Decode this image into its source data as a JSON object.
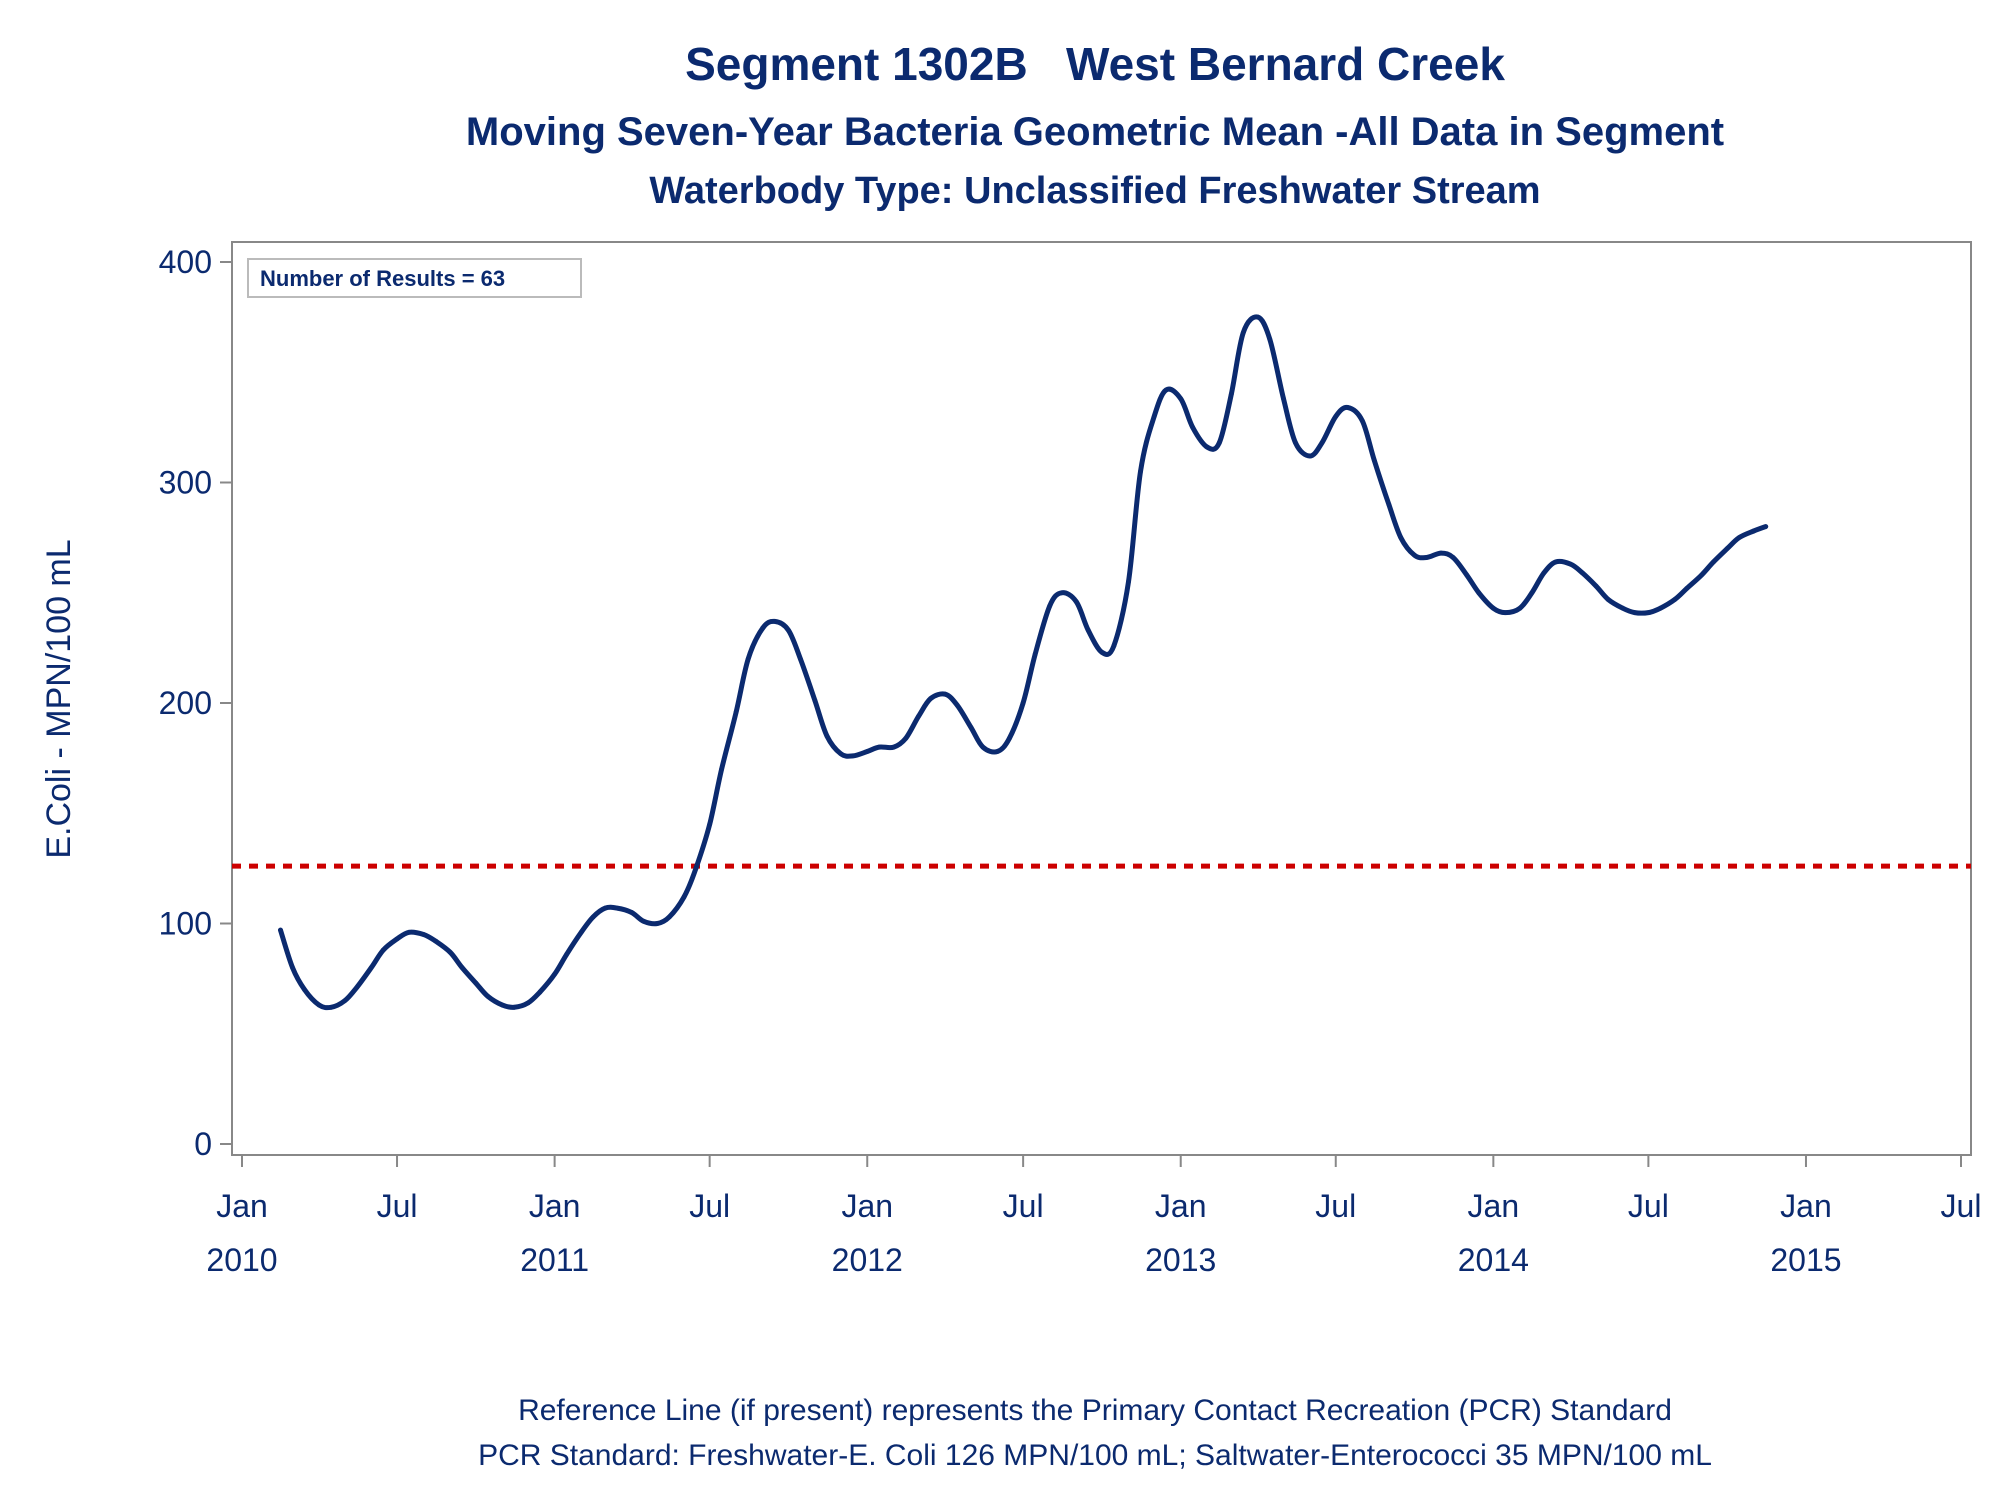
{
  "chart_data": {
    "type": "line",
    "title": "Segment 1302B   West Bernard Creek",
    "subtitle": "Moving Seven-Year Bacteria Geometric Mean -All Data in Segment",
    "subtitle2": "Waterbody Type: Unclassified Freshwater Stream",
    "ylabel": "E.Coli - MPN/100 mL",
    "ylim": [
      0,
      400
    ],
    "yticks": [
      0,
      100,
      200,
      300,
      400
    ],
    "xlim": [
      "2010-01-01",
      "2015-07-01"
    ],
    "xticks": [
      {
        "date": "2010-01-01",
        "month": "Jan",
        "year": "2010"
      },
      {
        "date": "2010-07-01",
        "month": "Jul",
        "year": ""
      },
      {
        "date": "2011-01-01",
        "month": "Jan",
        "year": "2011"
      },
      {
        "date": "2011-07-01",
        "month": "Jul",
        "year": ""
      },
      {
        "date": "2012-01-01",
        "month": "Jan",
        "year": "2012"
      },
      {
        "date": "2012-07-01",
        "month": "Jul",
        "year": ""
      },
      {
        "date": "2013-01-01",
        "month": "Jan",
        "year": "2013"
      },
      {
        "date": "2013-07-01",
        "month": "Jul",
        "year": ""
      },
      {
        "date": "2014-01-01",
        "month": "Jan",
        "year": "2014"
      },
      {
        "date": "2014-07-01",
        "month": "Jul",
        "year": ""
      },
      {
        "date": "2015-01-01",
        "month": "Jan",
        "year": "2015"
      },
      {
        "date": "2015-07-01",
        "month": "Jul",
        "year": ""
      }
    ],
    "inset_label": "Number of Results = 63",
    "reference_line": {
      "value": 126,
      "color": "#cc0000",
      "style": "dashed"
    },
    "series": [
      {
        "color": "#0b2a6f",
        "points": [
          [
            "2010-02-15",
            97
          ],
          [
            "2010-03-01",
            80
          ],
          [
            "2010-03-15",
            70
          ],
          [
            "2010-04-01",
            63
          ],
          [
            "2010-04-15",
            62
          ],
          [
            "2010-05-01",
            65
          ],
          [
            "2010-05-15",
            71
          ],
          [
            "2010-06-01",
            80
          ],
          [
            "2010-06-15",
            88
          ],
          [
            "2010-07-01",
            93
          ],
          [
            "2010-07-15",
            96
          ],
          [
            "2010-08-01",
            95
          ],
          [
            "2010-08-15",
            92
          ],
          [
            "2010-09-01",
            87
          ],
          [
            "2010-09-15",
            80
          ],
          [
            "2010-10-01",
            73
          ],
          [
            "2010-10-15",
            67
          ],
          [
            "2010-11-01",
            63
          ],
          [
            "2010-11-15",
            62
          ],
          [
            "2010-12-01",
            64
          ],
          [
            "2010-12-15",
            69
          ],
          [
            "2011-01-01",
            77
          ],
          [
            "2011-01-15",
            86
          ],
          [
            "2011-02-01",
            96
          ],
          [
            "2011-02-15",
            103
          ],
          [
            "2011-03-01",
            107
          ],
          [
            "2011-03-15",
            107
          ],
          [
            "2011-04-01",
            105
          ],
          [
            "2011-04-15",
            101
          ],
          [
            "2011-05-01",
            100
          ],
          [
            "2011-05-15",
            103
          ],
          [
            "2011-06-01",
            112
          ],
          [
            "2011-06-15",
            125
          ],
          [
            "2011-07-01",
            145
          ],
          [
            "2011-07-15",
            170
          ],
          [
            "2011-08-01",
            196
          ],
          [
            "2011-08-15",
            220
          ],
          [
            "2011-09-01",
            234
          ],
          [
            "2011-09-15",
            237
          ],
          [
            "2011-10-01",
            233
          ],
          [
            "2011-10-15",
            220
          ],
          [
            "2011-11-01",
            201
          ],
          [
            "2011-11-15",
            185
          ],
          [
            "2011-12-01",
            177
          ],
          [
            "2011-12-15",
            176
          ],
          [
            "2012-01-01",
            178
          ],
          [
            "2012-01-15",
            180
          ],
          [
            "2012-02-01",
            180
          ],
          [
            "2012-02-15",
            184
          ],
          [
            "2012-03-01",
            194
          ],
          [
            "2012-03-15",
            202
          ],
          [
            "2012-04-01",
            204
          ],
          [
            "2012-04-15",
            199
          ],
          [
            "2012-05-01",
            189
          ],
          [
            "2012-05-15",
            180
          ],
          [
            "2012-06-01",
            178
          ],
          [
            "2012-06-15",
            184
          ],
          [
            "2012-07-01",
            200
          ],
          [
            "2012-07-15",
            222
          ],
          [
            "2012-08-01",
            244
          ],
          [
            "2012-08-15",
            250
          ],
          [
            "2012-09-01",
            246
          ],
          [
            "2012-09-15",
            233
          ],
          [
            "2012-10-01",
            223
          ],
          [
            "2012-10-15",
            226
          ],
          [
            "2012-11-01",
            255
          ],
          [
            "2012-11-15",
            305
          ],
          [
            "2012-12-01",
            330
          ],
          [
            "2012-12-15",
            342
          ],
          [
            "2013-01-01",
            338
          ],
          [
            "2013-01-15",
            325
          ],
          [
            "2013-02-01",
            316
          ],
          [
            "2013-02-15",
            318
          ],
          [
            "2013-03-01",
            340
          ],
          [
            "2013-03-15",
            368
          ],
          [
            "2013-04-01",
            375
          ],
          [
            "2013-04-15",
            365
          ],
          [
            "2013-05-01",
            338
          ],
          [
            "2013-05-15",
            318
          ],
          [
            "2013-06-01",
            312
          ],
          [
            "2013-06-15",
            318
          ],
          [
            "2013-07-01",
            330
          ],
          [
            "2013-07-15",
            334
          ],
          [
            "2013-08-01",
            328
          ],
          [
            "2013-08-15",
            310
          ],
          [
            "2013-09-01",
            290
          ],
          [
            "2013-09-15",
            275
          ],
          [
            "2013-10-01",
            267
          ],
          [
            "2013-10-15",
            266
          ],
          [
            "2013-11-01",
            268
          ],
          [
            "2013-11-15",
            266
          ],
          [
            "2013-12-01",
            258
          ],
          [
            "2013-12-15",
            250
          ],
          [
            "2014-01-01",
            243
          ],
          [
            "2014-01-15",
            241
          ],
          [
            "2014-02-01",
            243
          ],
          [
            "2014-02-15",
            250
          ],
          [
            "2014-03-01",
            259
          ],
          [
            "2014-03-15",
            264
          ],
          [
            "2014-04-01",
            263
          ],
          [
            "2014-04-15",
            259
          ],
          [
            "2014-05-01",
            253
          ],
          [
            "2014-05-15",
            247
          ],
          [
            "2014-06-01",
            243
          ],
          [
            "2014-06-15",
            241
          ],
          [
            "2014-07-01",
            241
          ],
          [
            "2014-07-15",
            243
          ],
          [
            "2014-08-01",
            247
          ],
          [
            "2014-08-15",
            252
          ],
          [
            "2014-09-01",
            258
          ],
          [
            "2014-09-15",
            264
          ],
          [
            "2014-10-01",
            270
          ],
          [
            "2014-10-15",
            275
          ],
          [
            "2014-11-01",
            278
          ],
          [
            "2014-11-15",
            280
          ]
        ]
      }
    ]
  },
  "footnote": {
    "line1": "Reference Line (if present) represents the Primary Contact Recreation (PCR) Standard",
    "line2": "PCR Standard: Freshwater-E. Coli 126 MPN/100 mL; Saltwater-Enterococci 35 MPN/100 mL"
  }
}
